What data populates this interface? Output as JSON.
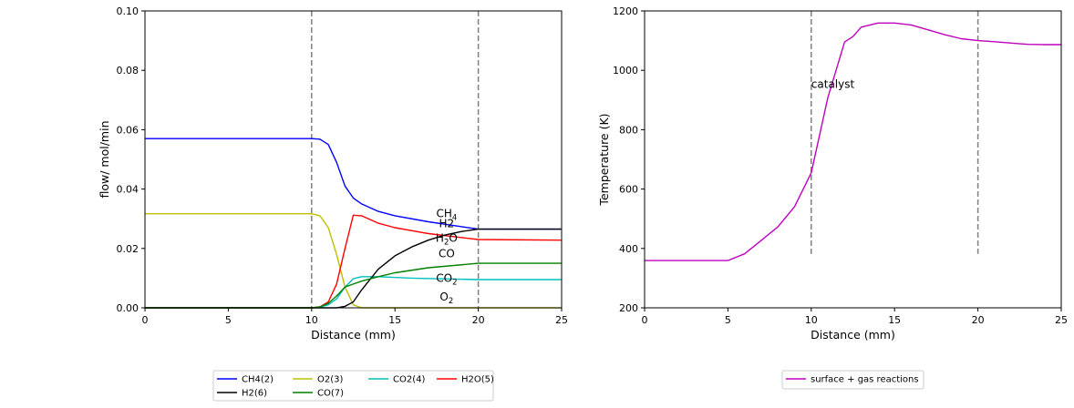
{
  "chart_data": [
    {
      "type": "line",
      "xlabel": "Distance (mm)",
      "ylabel": "flow/ mol/min",
      "xlim": [
        0,
        25
      ],
      "ylim": [
        0,
        0.1
      ],
      "xticks": [
        "0",
        "5",
        "10",
        "15",
        "20",
        "25"
      ],
      "yticks": [
        "0.00",
        "0.02",
        "0.04",
        "0.06",
        "0.08",
        "0.10"
      ],
      "vlines": [
        10,
        20
      ],
      "legend_position": "bottom-center",
      "series": [
        {
          "name": "CH4(2)",
          "color": "#0000ff",
          "x": [
            0,
            10,
            10.5,
            11,
            11.5,
            12,
            12.5,
            13,
            14,
            15,
            17,
            20,
            25
          ],
          "y": [
            0.057,
            0.057,
            0.0568,
            0.055,
            0.049,
            0.041,
            0.037,
            0.035,
            0.0325,
            0.031,
            0.029,
            0.0265,
            0.0265
          ]
        },
        {
          "name": "O2(3)",
          "color": "#bfbf00",
          "x": [
            0,
            10,
            10.5,
            11,
            11.5,
            12,
            12.5,
            13,
            14,
            25
          ],
          "y": [
            0.0317,
            0.0317,
            0.031,
            0.027,
            0.018,
            0.007,
            0.001,
            0.0,
            0.0,
            0.0
          ]
        },
        {
          "name": "CO2(4)",
          "color": "#00bfbf",
          "x": [
            0,
            10,
            10.5,
            11,
            11.5,
            12,
            12.5,
            13,
            14,
            16,
            20,
            25
          ],
          "y": [
            0.0,
            0.0,
            0.0002,
            0.001,
            0.003,
            0.007,
            0.0098,
            0.0105,
            0.0105,
            0.01,
            0.0095,
            0.0095
          ]
        },
        {
          "name": "H2O(5)",
          "color": "#ff0000",
          "x": [
            0,
            10,
            10.5,
            11,
            11.5,
            12,
            12.5,
            13,
            14,
            15,
            17,
            20,
            25
          ],
          "y": [
            0.0,
            0.0,
            0.0003,
            0.002,
            0.008,
            0.02,
            0.0312,
            0.031,
            0.0285,
            0.027,
            0.025,
            0.023,
            0.0228
          ]
        },
        {
          "name": "H2(6)",
          "color": "#000000",
          "x": [
            0,
            11.5,
            12,
            12.5,
            13,
            14,
            15,
            16,
            17,
            18,
            19,
            20,
            25
          ],
          "y": [
            0.0,
            0.0,
            0.0005,
            0.002,
            0.006,
            0.013,
            0.0175,
            0.0205,
            0.0228,
            0.0245,
            0.0257,
            0.0265,
            0.0265
          ]
        },
        {
          "name": "CO(7)",
          "color": "#008000",
          "x": [
            0,
            10,
            10.5,
            11,
            11.5,
            12,
            12.5,
            13,
            14,
            15,
            17,
            20,
            25
          ],
          "y": [
            0.0,
            0.0,
            0.0003,
            0.0015,
            0.004,
            0.007,
            0.008,
            0.009,
            0.0105,
            0.0118,
            0.0135,
            0.015,
            0.015
          ]
        }
      ],
      "annotations": [
        {
          "text": "CH",
          "sub": "4",
          "x": 18.1,
          "y": 0.0305
        },
        {
          "text": "H2",
          "sub": "",
          "x": 18.1,
          "y": 0.0272
        },
        {
          "text": "H",
          "sub": "2",
          "mid": "O",
          "x": 18.1,
          "y": 0.0222
        },
        {
          "text": "CO",
          "sub": "",
          "x": 18.1,
          "y": 0.017
        },
        {
          "text": "CO",
          "sub": "2",
          "x": 18.1,
          "y": 0.0088
        },
        {
          "text": "O",
          "sub": "2",
          "x": 18.1,
          "y": 0.0025
        }
      ]
    },
    {
      "type": "line",
      "xlabel": "Distance (mm)",
      "ylabel": "Temperature (K)",
      "xlim": [
        0,
        25
      ],
      "ylim": [
        200,
        1300
      ],
      "xticks": [
        "0",
        "5",
        "10",
        "15",
        "20",
        "25"
      ],
      "yticks": [
        "200",
        "400",
        "600",
        "800",
        "1000",
        "1200"
      ],
      "vlines": [
        10,
        20
      ],
      "vline_range": [
        400,
        1300
      ],
      "legend_position": "bottom-center",
      "series": [
        {
          "name": "surface + gas reactions",
          "color": "#bf00bf",
          "x": [
            0,
            5,
            6,
            7,
            8,
            9,
            10,
            11,
            12,
            12.5,
            13,
            14,
            15,
            16,
            17,
            18,
            19,
            20,
            21,
            22,
            23,
            24,
            25
          ],
          "y": [
            375,
            375,
            400,
            450,
            500,
            575,
            700,
            980,
            1185,
            1205,
            1240,
            1255,
            1255,
            1248,
            1230,
            1212,
            1197,
            1190,
            1186,
            1181,
            1176,
            1175,
            1175
          ]
        }
      ],
      "annotations": [
        {
          "text": "catalyst",
          "sub": "",
          "x": 10,
          "y": 1015
        }
      ]
    }
  ]
}
